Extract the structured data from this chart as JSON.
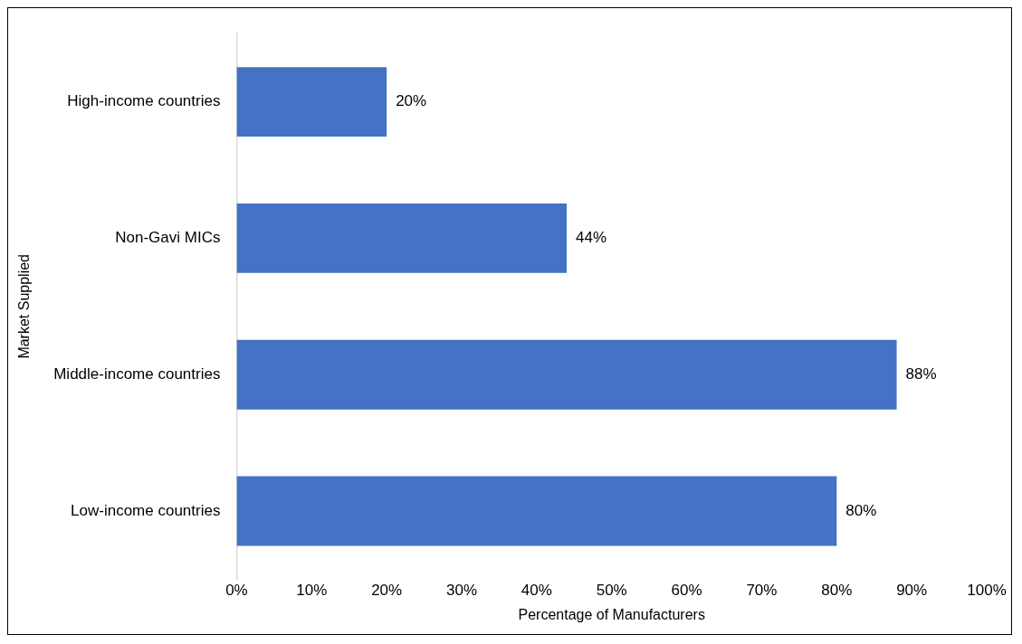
{
  "chart_data": {
    "type": "bar",
    "orientation": "horizontal",
    "categories": [
      "High-income countries",
      "Non-Gavi MICs",
      "Middle-income countries",
      "Low-income countries"
    ],
    "values": [
      20,
      44,
      88,
      80
    ],
    "color": "#4472c4",
    "value_labels": [
      "20%",
      "44%",
      "88%",
      "80%"
    ],
    "xlim": [
      0,
      100
    ],
    "xticks": [
      {
        "value": 0,
        "label": "0%"
      },
      {
        "value": 10,
        "label": "10%"
      },
      {
        "value": 20,
        "label": "20%"
      },
      {
        "value": 30,
        "label": "30%"
      },
      {
        "value": 40,
        "label": "40%"
      },
      {
        "value": 50,
        "label": "50%"
      },
      {
        "value": 60,
        "label": "60%"
      },
      {
        "value": 70,
        "label": "70%"
      },
      {
        "value": 80,
        "label": "80%"
      },
      {
        "value": 90,
        "label": "90%"
      },
      {
        "value": 100,
        "label": "100%"
      }
    ],
    "xlabel": "Percentage of Manufacturers",
    "ylabel": "Market Supplied",
    "grid": false,
    "legend": false
  }
}
